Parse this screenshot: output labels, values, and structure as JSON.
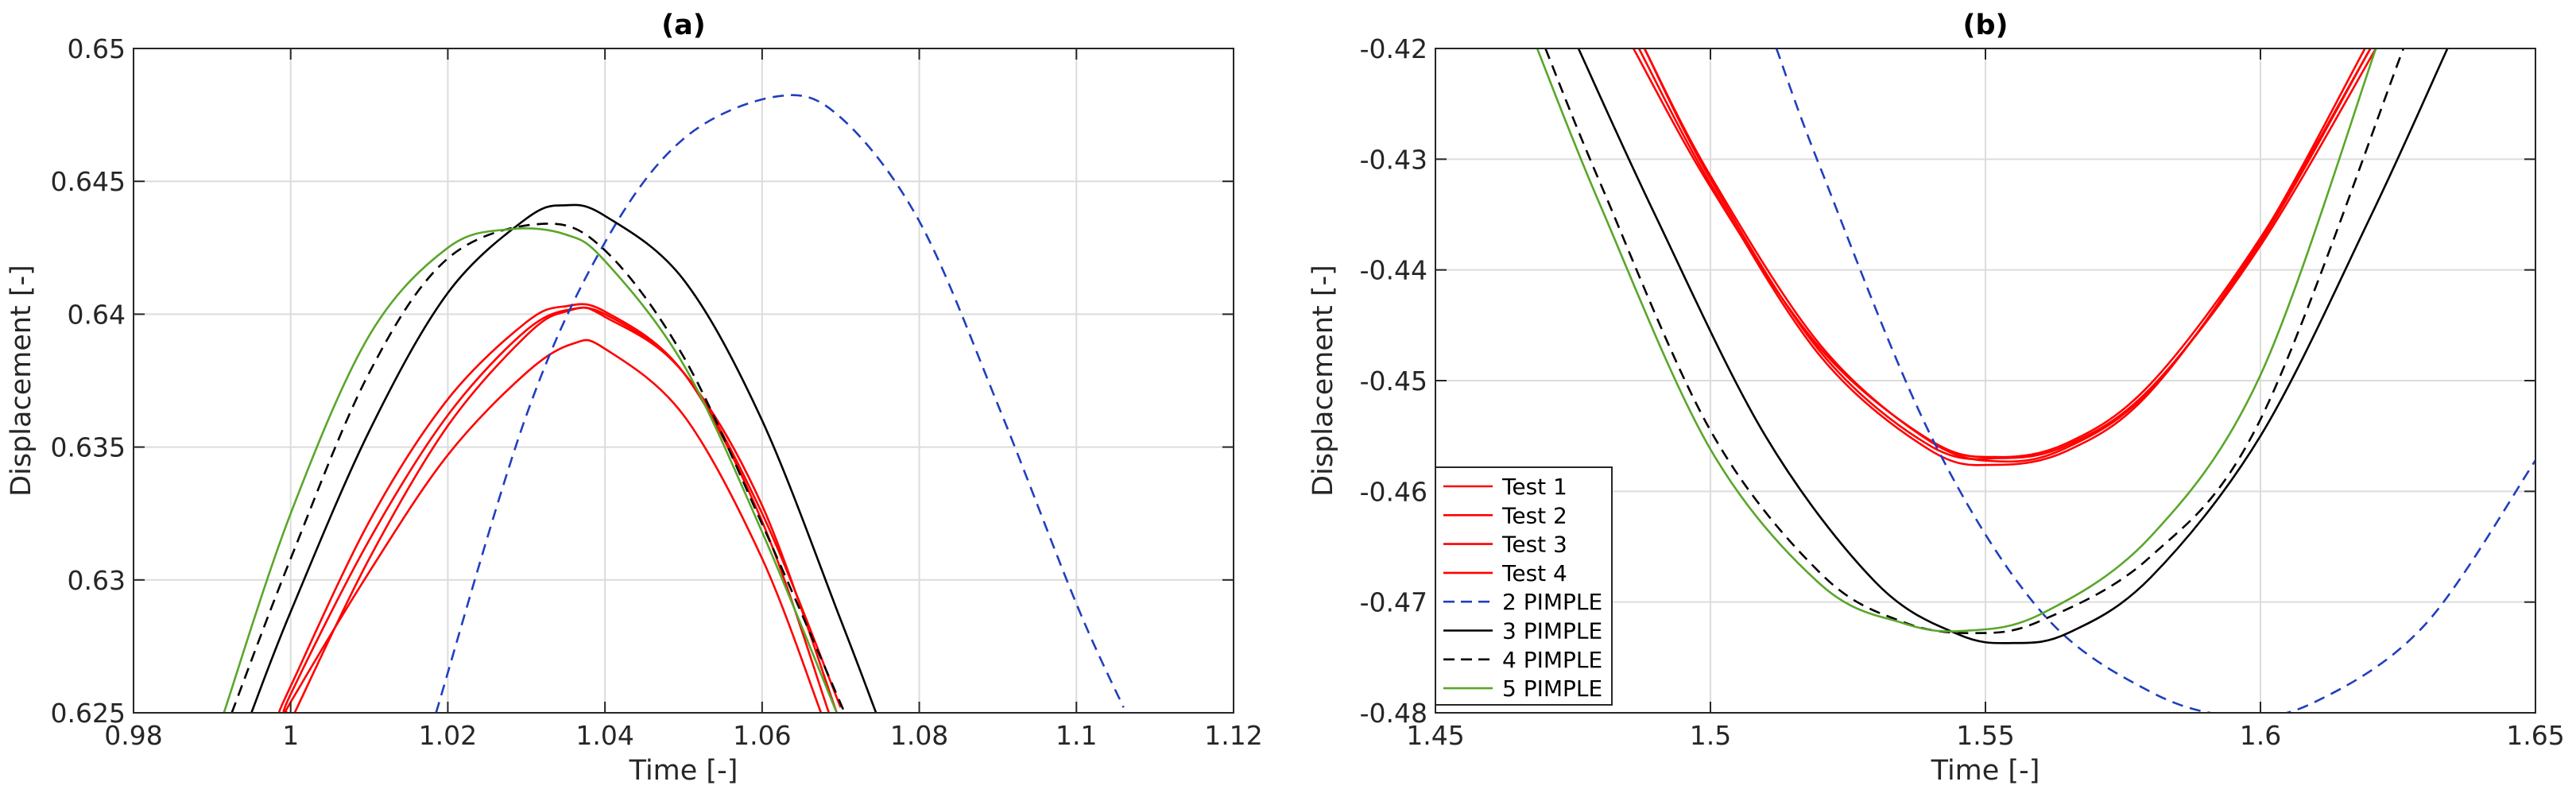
{
  "chart_data": [
    {
      "type": "line",
      "title": "(a)",
      "xlabel": "Time [-]",
      "ylabel": "Displacement [-]",
      "xlim": [
        0.98,
        1.12
      ],
      "ylim": [
        0.625,
        0.65
      ],
      "xticks": [
        0.98,
        1.0,
        1.02,
        1.04,
        1.06,
        1.08,
        1.1,
        1.12
      ],
      "xtick_labels": [
        "0.98",
        "1",
        "1.02",
        "1.04",
        "1.06",
        "1.08",
        "1.1",
        "1.12"
      ],
      "yticks": [
        0.625,
        0.63,
        0.635,
        0.64,
        0.645,
        0.65
      ],
      "ytick_labels": [
        "0.625",
        "0.63",
        "0.635",
        "0.64",
        "0.645",
        "0.65"
      ],
      "grid": true,
      "series": [
        {
          "name": "Test 1",
          "color": "#ff0000",
          "style": "solid",
          "x": [
            0.9995,
            1.0,
            1.01,
            1.02,
            1.03,
            1.036,
            1.04,
            1.05,
            1.06,
            1.07
          ],
          "y": [
            0.625,
            0.6257,
            0.6315,
            0.6362,
            0.6394,
            0.6402,
            0.6399,
            0.6378,
            0.6325,
            0.6252
          ]
        },
        {
          "name": "Test 2",
          "color": "#ff0000",
          "style": "solid",
          "x": [
            1.0005,
            1.01,
            1.02,
            1.03,
            1.035,
            1.04,
            1.05,
            1.06,
            1.0695
          ],
          "y": [
            0.625,
            0.6308,
            0.6358,
            0.6392,
            0.6401,
            0.64,
            0.6378,
            0.6328,
            0.625
          ]
        },
        {
          "name": "Test 3",
          "color": "#ff0000",
          "style": "solid",
          "x": [
            0.9985,
            1.0,
            1.01,
            1.02,
            1.03,
            1.035,
            1.04,
            1.05,
            1.06,
            1.0685
          ],
          "y": [
            0.625,
            0.626,
            0.6322,
            0.6368,
            0.6397,
            0.6403,
            0.6401,
            0.6378,
            0.6322,
            0.625
          ]
        },
        {
          "name": "Test 4",
          "color": "#ff0000",
          "style": "solid",
          "x": [
            0.9995,
            1.0,
            1.01,
            1.02,
            1.03,
            1.036,
            1.04,
            1.05,
            1.06,
            1.0675
          ],
          "y": [
            0.625,
            0.6254,
            0.6303,
            0.6347,
            0.6378,
            0.6389,
            0.6387,
            0.6362,
            0.6308,
            0.625
          ]
        },
        {
          "name": "2 PIMPLE",
          "color": "#1f3fbf",
          "style": "dashed",
          "x": [
            1.0185,
            1.03,
            1.04,
            1.05,
            1.062,
            1.07,
            1.08,
            1.09,
            1.1,
            1.106
          ],
          "y": [
            0.625,
            0.6362,
            0.6427,
            0.6466,
            0.6482,
            0.6474,
            0.6435,
            0.6366,
            0.6291,
            0.6252
          ]
        },
        {
          "name": "3 PIMPLE",
          "color": "#000000",
          "style": "solid",
          "x": [
            0.995,
            1.0,
            1.01,
            1.02,
            1.03,
            1.035,
            1.04,
            1.05,
            1.06,
            1.07,
            1.0745
          ],
          "y": [
            0.625,
            0.6288,
            0.6356,
            0.6408,
            0.6436,
            0.6441,
            0.6437,
            0.6413,
            0.636,
            0.6285,
            0.625
          ]
        },
        {
          "name": "4 PIMPLE",
          "color": "#000000",
          "style": "dashed",
          "x": [
            0.9925,
            1.0,
            1.01,
            1.02,
            1.032,
            1.04,
            1.05,
            1.06,
            1.0705
          ],
          "y": [
            0.625,
            0.6308,
            0.6378,
            0.6421,
            0.6434,
            0.6424,
            0.6384,
            0.6321,
            0.625
          ]
        },
        {
          "name": "5 PIMPLE",
          "color": "#5aa62a",
          "style": "solid",
          "x": [
            0.9915,
            1.0,
            1.01,
            1.02,
            1.028,
            1.035,
            1.04,
            1.05,
            1.06,
            1.0695
          ],
          "y": [
            0.625,
            0.6325,
            0.6392,
            0.6425,
            0.6432,
            0.643,
            0.642,
            0.6381,
            0.6318,
            0.625
          ]
        }
      ]
    },
    {
      "type": "line",
      "title": "(b)",
      "xlabel": "Time [-]",
      "ylabel": "Displacement [-]",
      "xlim": [
        1.45,
        1.65
      ],
      "ylim": [
        -0.48,
        -0.42
      ],
      "xticks": [
        1.45,
        1.5,
        1.55,
        1.6,
        1.65
      ],
      "xtick_labels": [
        "1.45",
        "1.5",
        "1.55",
        "1.6",
        "1.65"
      ],
      "yticks": [
        -0.48,
        -0.47,
        -0.46,
        -0.45,
        -0.44,
        -0.43,
        -0.42
      ],
      "ytick_labels": [
        "-0.48",
        "-0.47",
        "-0.46",
        "-0.45",
        "-0.44",
        "-0.43",
        "-0.42"
      ],
      "grid": true,
      "legend_location": "bottom-left",
      "series": [
        {
          "name": "Test 1",
          "color": "#ff0000",
          "style": "solid",
          "x": [
            1.486,
            1.5,
            1.52,
            1.54,
            1.552,
            1.565,
            1.58,
            1.6,
            1.62
          ],
          "y": [
            -0.42,
            -0.4325,
            -0.4471,
            -0.4554,
            -0.4569,
            -0.4556,
            -0.4503,
            -0.4371,
            -0.42
          ]
        },
        {
          "name": "Test 2",
          "color": "#ff0000",
          "style": "solid",
          "x": [
            1.488,
            1.5,
            1.52,
            1.54,
            1.553,
            1.565,
            1.58,
            1.6,
            1.62
          ],
          "y": [
            -0.42,
            -0.4315,
            -0.4468,
            -0.4555,
            -0.4573,
            -0.456,
            -0.4508,
            -0.4375,
            -0.42
          ]
        },
        {
          "name": "Test 3",
          "color": "#ff0000",
          "style": "solid",
          "x": [
            1.487,
            1.5,
            1.52,
            1.54,
            1.552,
            1.565,
            1.58,
            1.6,
            1.619
          ],
          "y": [
            -0.42,
            -0.4322,
            -0.4478,
            -0.4563,
            -0.4576,
            -0.4563,
            -0.451,
            -0.4372,
            -0.42
          ]
        },
        {
          "name": "Test 4",
          "color": "#ff0000",
          "style": "solid",
          "x": [
            1.488,
            1.5,
            1.52,
            1.54,
            1.553,
            1.565,
            1.58,
            1.6,
            1.621
          ],
          "y": [
            -0.42,
            -0.4318,
            -0.4474,
            -0.4559,
            -0.457,
            -0.4558,
            -0.4507,
            -0.4378,
            -0.42
          ]
        },
        {
          "name": "2 PIMPLE",
          "color": "#1f3fbf",
          "style": "dashed",
          "x": [
            1.512,
            1.52,
            1.54,
            1.56,
            1.58,
            1.596,
            1.61,
            1.63,
            1.65
          ],
          "y": [
            -0.42,
            -0.4308,
            -0.4549,
            -0.4708,
            -0.4781,
            -0.4803,
            -0.479,
            -0.472,
            -0.4572
          ]
        },
        {
          "name": "3 PIMPLE",
          "color": "#000000",
          "style": "solid",
          "x": [
            1.476,
            1.49,
            1.51,
            1.53,
            1.545,
            1.555,
            1.565,
            1.58,
            1.6,
            1.62,
            1.634
          ],
          "y": [
            -0.42,
            -0.4351,
            -0.455,
            -0.4682,
            -0.4729,
            -0.4737,
            -0.4728,
            -0.4678,
            -0.455,
            -0.4352,
            -0.42
          ]
        },
        {
          "name": "4 PIMPLE",
          "color": "#000000",
          "style": "dashed",
          "x": [
            1.47,
            1.48,
            1.5,
            1.52,
            1.535,
            1.548,
            1.56,
            1.58,
            1.6,
            1.626
          ],
          "y": [
            -0.42,
            -0.4322,
            -0.4545,
            -0.4674,
            -0.4718,
            -0.4728,
            -0.4717,
            -0.4659,
            -0.4535,
            -0.42
          ]
        },
        {
          "name": "5 PIMPLE",
          "color": "#5aa62a",
          "style": "solid",
          "x": [
            1.4685,
            1.48,
            1.5,
            1.52,
            1.535,
            1.546,
            1.56,
            1.58,
            1.6,
            1.621
          ],
          "y": [
            -0.42,
            -0.4342,
            -0.4562,
            -0.4684,
            -0.4719,
            -0.4726,
            -0.4711,
            -0.4641,
            -0.4495,
            -0.42
          ]
        }
      ]
    }
  ]
}
